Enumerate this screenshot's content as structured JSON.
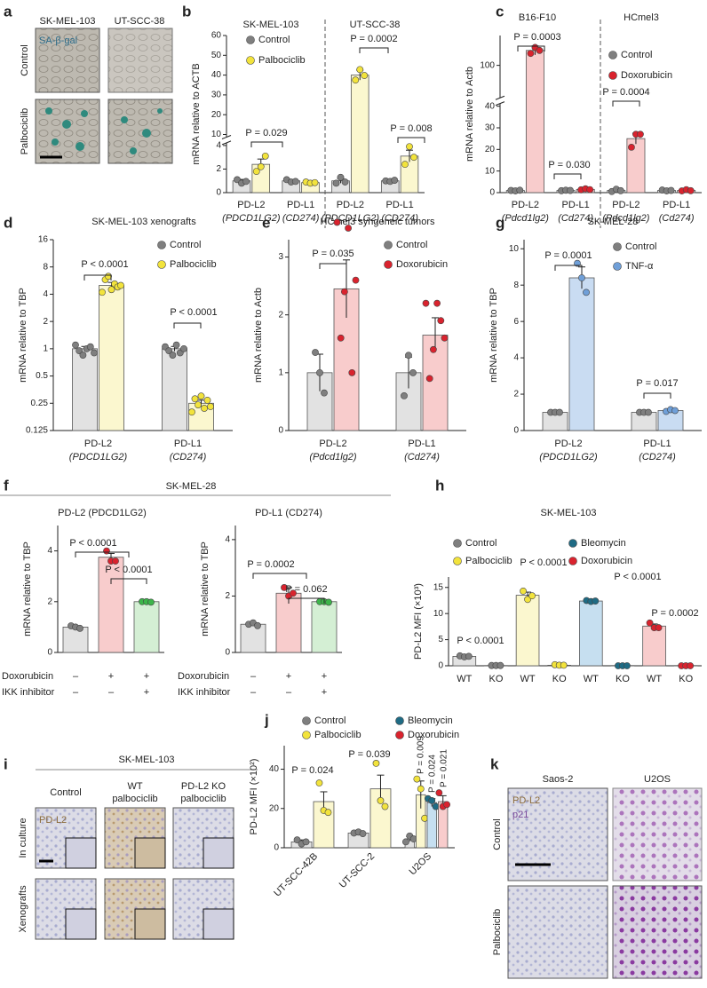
{
  "chart_data": [
    {
      "type": "bar",
      "panel": "b",
      "ylabel": "mRNA relative to ACTB",
      "group_titles": [
        "SK-MEL-103",
        "UT-SCC-38"
      ],
      "categories": [
        "PD-L2",
        "PD-L1",
        "PD-L2",
        "PD-L1"
      ],
      "sublabels": [
        "(PDCD1LG2)",
        "(CD274)",
        "(PDCD1LG2)",
        "(CD274)"
      ],
      "series": [
        {
          "name": "Control",
          "color": "#7f7f7f",
          "bar_color": "#e2e2e2",
          "values": [
            1,
            1,
            1,
            1
          ],
          "errors": [
            0.12,
            0.08,
            0.2,
            0.07
          ],
          "points": [
            [
              1.1,
              0.8,
              0.95
            ],
            [
              1.1,
              0.9,
              0.95
            ],
            [
              0.8,
              1.3,
              0.9
            ],
            [
              1.0,
              0.95,
              1.05
            ]
          ]
        },
        {
          "name": "Palbociclib",
          "color": "#f2e33c",
          "bar_color": "#fbf7cf",
          "values": [
            2.4,
            0.85,
            40,
            3.1
          ],
          "errors": [
            0.45,
            0.08,
            2.5,
            0.5
          ],
          "points": [
            [
              1.8,
              2.2,
              3.1
            ],
            [
              0.9,
              0.8,
              0.85
            ],
            [
              37.5,
              42.8,
              39.8
            ],
            [
              2.4,
              3.9,
              3.0
            ]
          ]
        }
      ],
      "ylim": [
        0,
        60
      ],
      "ybreak": [
        4,
        10
      ],
      "yticks": [
        0,
        2,
        4,
        10,
        20,
        30,
        40,
        50,
        60
      ],
      "legend": "top-left",
      "annotations": [
        "P = 0.029",
        "P = 0.0002",
        "P = 0.008"
      ]
    },
    {
      "type": "bar",
      "panel": "c",
      "ylabel": "mRNA relative to Actb",
      "group_titles": [
        "B16-F10",
        "HCmel3"
      ],
      "categories": [
        "PD-L2",
        "PD-L1",
        "PD-L2",
        "PD-L1"
      ],
      "sublabels": [
        "(Pdcd1lg2)",
        "(Cd274)",
        "(Pdcd1lg2)",
        "(Cd274)"
      ],
      "series": [
        {
          "name": "Control",
          "color": "#7f7f7f",
          "bar_color": "#e2e2e2",
          "values": [
            1,
            1,
            1,
            1
          ],
          "errors": [
            0.1,
            0.1,
            0.3,
            0.1
          ],
          "points": [
            [
              1.0,
              0.8,
              1.1
            ],
            [
              0.9,
              1.1,
              1.0
            ],
            [
              0.5,
              1.6,
              0.9
            ],
            [
              1.2,
              0.8,
              1.0
            ]
          ]
        },
        {
          "name": "Doxorubicin",
          "color": "#d9232e",
          "bar_color": "#f8cccc",
          "values": [
            110,
            1.5,
            25,
            1.0
          ],
          "errors": [
            3,
            0.2,
            2.5,
            0.3
          ],
          "points": [
            [
              108,
              112,
              110
            ],
            [
              1.3,
              1.8,
              1.4
            ],
            [
              21,
              27,
              27
            ],
            [
              0.8,
              1.4,
              0.9
            ]
          ]
        }
      ],
      "ylim": [
        0,
        120
      ],
      "ybreak": [
        40,
        80
      ],
      "yticks": [
        0,
        10,
        20,
        30,
        40,
        100
      ],
      "legend": "top-right",
      "annotations": [
        "P = 0.0003",
        "P = 0.030",
        "P = 0.0004"
      ]
    },
    {
      "type": "bar",
      "panel": "d",
      "title": "SK-MEL-103 xenografts",
      "ylabel": "mRNA relative to TBP",
      "categories": [
        "PD-L2",
        "PD-L1"
      ],
      "sublabels": [
        "(PDCD1LG2)",
        "(CD274)"
      ],
      "series": [
        {
          "name": "Control",
          "color": "#7f7f7f",
          "bar_color": "#e2e2e2",
          "values": [
            1,
            1
          ],
          "errors": [
            0.06,
            0.06
          ],
          "points": [
            [
              1.1,
              0.95,
              0.85,
              1.0,
              1.05,
              0.9
            ],
            [
              1.05,
              0.95,
              0.85,
              1.1,
              0.9,
              1.0
            ]
          ]
        },
        {
          "name": "Palbociclib",
          "color": "#f2e33c",
          "bar_color": "#fbf7cf",
          "values": [
            5,
            0.25
          ],
          "errors": [
            0.4,
            0.02
          ],
          "points": [
            [
              4.2,
              5.8,
              6.3,
              4.5,
              5.2,
              4.8,
              5.0
            ],
            [
              0.2,
              0.28,
              0.24,
              0.3,
              0.22,
              0.27,
              0.23
            ]
          ]
        }
      ],
      "log_scale": true,
      "ylim": [
        0.125,
        16
      ],
      "yticks": [
        0.125,
        0.25,
        0.5,
        1,
        2,
        4,
        8,
        16
      ],
      "legend": "top-right",
      "annotations": [
        "P < 0.0001",
        "P < 0.0001"
      ]
    },
    {
      "type": "bar",
      "panel": "e",
      "title": "HCmel3 syngeneic tumors",
      "ylabel": "mRNA relative to Actb",
      "categories": [
        "PD-L2",
        "PD-L1"
      ],
      "sublabels": [
        "(Pdcd1lg2)",
        "(Cd274)"
      ],
      "series": [
        {
          "name": "Control",
          "color": "#7f7f7f",
          "bar_color": "#e2e2e2",
          "values": [
            1,
            1
          ],
          "errors": [
            0.32,
            0.27
          ],
          "points": [
            [
              1.35,
              1.0,
              0.65
            ],
            [
              0.6,
              1.3,
              1.0
            ]
          ]
        },
        {
          "name": "Doxorubicin",
          "color": "#d9232e",
          "bar_color": "#f8cccc",
          "values": [
            2.45,
            1.65
          ],
          "errors": [
            0.5,
            0.3
          ],
          "points": [
            [
              3.6,
              1.6,
              2.4,
              3.5,
              1.0,
              2.6
            ],
            [
              2.2,
              0.9,
              1.4,
              2.2,
              1.9,
              1.6
            ]
          ]
        }
      ],
      "ylim": [
        0,
        3.3
      ],
      "yticks": [
        0,
        1,
        2,
        3
      ],
      "legend": "top-right",
      "annotations": [
        "P = 0.035"
      ]
    },
    {
      "type": "bar",
      "panel": "g",
      "title": "SK-MEL-28",
      "ylabel": "mRNA relative to TBP",
      "categories": [
        "PD-L2",
        "PD-L1"
      ],
      "sublabels": [
        "(PDCD1LG2)",
        "(CD274)"
      ],
      "series": [
        {
          "name": "Control",
          "color": "#7f7f7f",
          "bar_color": "#e2e2e2",
          "values": [
            1,
            1
          ],
          "errors": [
            0.03,
            0.05
          ],
          "points": [
            [
              1.0,
              1.0,
              1.0
            ],
            [
              1.0,
              1.0,
              1.0
            ]
          ]
        },
        {
          "name": "TNF-α",
          "color": "#6f9fd8",
          "bar_color": "#c9dcf2",
          "values": [
            8.4,
            1.1
          ],
          "errors": [
            0.6,
            0.05
          ],
          "points": [
            [
              9.2,
              8.4,
              7.6
            ],
            [
              1.05,
              1.15,
              1.1
            ]
          ]
        }
      ],
      "ylim": [
        0,
        10.5
      ],
      "yticks": [
        0,
        2,
        4,
        6,
        8,
        10
      ],
      "legend": "top-right",
      "annotations": [
        "P = 0.0001",
        "P = 0.017"
      ]
    },
    {
      "type": "bar",
      "panel": "f",
      "header": "SK-MEL-28",
      "title": "PD-L2 (PDCD1LG2)",
      "ylabel": "mRNA relative to TBP",
      "conditions": [
        {
          "label": "Doxorubicin",
          "values": [
            "–",
            "+",
            "+"
          ]
        },
        {
          "label": "IKK inhibitor",
          "values": [
            "–",
            "–",
            "+"
          ]
        }
      ],
      "series": [
        {
          "colors": [
            "#7f7f7f",
            "#d9232e",
            "#3cb54a"
          ],
          "bar_colors": [
            "#e2e2e2",
            "#f8cccc",
            "#d4efd4"
          ],
          "values": [
            1,
            3.75,
            2.0
          ],
          "errors": [
            0.05,
            0.15,
            0.03
          ],
          "points": [
            [
              1.05,
              1.0,
              0.95
            ],
            [
              4.0,
              3.6,
              3.6
            ],
            [
              2.0,
              2.0,
              1.98
            ]
          ]
        }
      ],
      "ylim": [
        0,
        5
      ],
      "yticks": [
        0,
        2,
        4
      ],
      "annotations": [
        "P < 0.0001",
        "P < 0.0001"
      ]
    },
    {
      "type": "bar",
      "panel": "",
      "title": "PD-L1 (CD274)",
      "ylabel": "mRNA relative to TBP",
      "conditions": [
        {
          "label": "Doxorubicin",
          "values": [
            "–",
            "+",
            "+"
          ]
        },
        {
          "label": "IKK inhibitor",
          "values": [
            "–",
            "–",
            "+"
          ]
        }
      ],
      "series": [
        {
          "colors": [
            "#7f7f7f",
            "#d9232e",
            "#3cb54a"
          ],
          "bar_colors": [
            "#e2e2e2",
            "#f8cccc",
            "#d4efd4"
          ],
          "values": [
            1,
            2.1,
            1.8
          ],
          "errors": [
            0.05,
            0.2,
            0.03
          ],
          "points": [
            [
              1.0,
              1.05,
              0.95
            ],
            [
              2.3,
              2.0,
              2.1
            ],
            [
              1.8,
              1.8,
              1.78
            ]
          ]
        }
      ],
      "ylim": [
        0,
        4.5
      ],
      "yticks": [
        0,
        2,
        4
      ],
      "annotations": [
        "P = 0.0002",
        "P = 0.062"
      ]
    },
    {
      "type": "bar",
      "panel": "h",
      "title": "SK-MEL-103",
      "ylabel": "PD-L2 MFI (×10³)",
      "categories": [
        "WT",
        "KO",
        "WT",
        "KO",
        "WT",
        "KO",
        "WT",
        "KO"
      ],
      "series": [
        {
          "name": "Control",
          "color": "#7f7f7f",
          "bar_color": "#e2e2e2",
          "values": [
            1.8,
            0.05,
            null,
            null,
            null,
            null,
            null,
            null
          ],
          "errors": [
            0.1,
            0.02,
            null,
            null,
            null,
            null,
            null,
            null
          ],
          "points": [
            [
              1.9,
              1.7,
              1.8
            ],
            [
              0.05,
              0.05,
              0.05
            ],
            null,
            null,
            null,
            null,
            null,
            null
          ]
        },
        {
          "name": "Palbociclib",
          "color": "#f2e33c",
          "bar_color": "#fbf7cf",
          "values": [
            null,
            null,
            13.5,
            0.1,
            null,
            null,
            null,
            null
          ],
          "errors": [
            null,
            null,
            0.6,
            0.05,
            null,
            null,
            null,
            null
          ],
          "points": [
            null,
            null,
            [
              14.3,
              12.7,
              13.4
            ],
            [
              0.2,
              0.1,
              0.1
            ],
            null,
            null,
            null,
            null
          ]
        },
        {
          "name": "Bleomycin",
          "color": "#1f6b84",
          "bar_color": "#c6dff0",
          "values": [
            null,
            null,
            null,
            null,
            12.4,
            0.05,
            null,
            null
          ],
          "errors": [
            null,
            null,
            null,
            null,
            0.1,
            0.02,
            null,
            null
          ],
          "points": [
            null,
            null,
            null,
            null,
            [
              12.5,
              12.3,
              12.4
            ],
            [
              0,
              0,
              0
            ],
            null,
            null
          ]
        },
        {
          "name": "Doxorubicin",
          "color": "#d9232e",
          "bar_color": "#f8cccc",
          "values": [
            null,
            null,
            null,
            null,
            null,
            null,
            7.6,
            0.05
          ],
          "errors": [
            null,
            null,
            null,
            null,
            null,
            null,
            0.4,
            0.02
          ],
          "points": [
            null,
            null,
            null,
            null,
            null,
            null,
            [
              8.2,
              7.3,
              7.3
            ],
            [
              0,
              0,
              0
            ]
          ]
        }
      ],
      "ylim": [
        0,
        17
      ],
      "yticks": [
        0,
        5,
        10,
        15
      ],
      "legend": "top-left",
      "annotations": [
        "P < 0.0001",
        "P < 0.0001",
        "P < 0.0001",
        "P = 0.0002"
      ]
    },
    {
      "type": "bar",
      "panel": "j",
      "ylabel": "PD-L2 MFI (×10²)",
      "categories": [
        "UT-SCC-42B",
        "UT-SCC-2",
        "U2OS"
      ],
      "series": [
        {
          "name": "Control",
          "color": "#7f7f7f",
          "bar_color": "#e2e2e2",
          "values": [
            3,
            7.5,
            4.5
          ],
          "errors": [
            1,
            0.5,
            1.2
          ],
          "points": [
            [
              4,
              2,
              3
            ],
            [
              7.5,
              8,
              7.2
            ],
            [
              3,
              6,
              4.5
            ]
          ]
        },
        {
          "name": "Palbociclib",
          "color": "#f2e33c",
          "bar_color": "#fbf7cf",
          "values": [
            23.5,
            30,
            27
          ],
          "errors": [
            5,
            7,
            7
          ],
          "points": [
            [
              33,
              19,
              18
            ],
            [
              43,
              24,
              21
            ],
            [
              35,
              30,
              15
            ]
          ]
        },
        {
          "name": "Bleomycin",
          "color": "#1f6b84",
          "bar_color": "#c6dff0",
          "values": [
            null,
            null,
            23
          ],
          "errors": [
            null,
            null,
            2
          ],
          "points": [
            null,
            null,
            [
              25,
              24,
              21
            ]
          ]
        },
        {
          "name": "Doxorubicin",
          "color": "#d9232e",
          "bar_color": "#f8cccc",
          "values": [
            null,
            null,
            23.5
          ],
          "errors": [
            null,
            null,
            3
          ],
          "points": [
            null,
            null,
            [
              28,
              21,
              22
            ]
          ]
        }
      ],
      "ylim": [
        0,
        52
      ],
      "yticks": [
        0,
        20,
        40
      ],
      "legend": "top-left",
      "annotations": [
        "P = 0.024",
        "P = 0.039",
        "P = 0.009",
        "P = 0.024",
        "P = 0.021"
      ]
    }
  ],
  "image_panels": [
    {
      "panel": "a",
      "columns": [
        "SK-MEL-103",
        "UT-SCC-38"
      ],
      "rows": [
        "Control",
        "Palbociclib"
      ],
      "stain_labels": [
        "SA-β-gal"
      ]
    },
    {
      "panel": "i",
      "title": "SK-MEL-103",
      "columns": [
        [
          "Control"
        ],
        [
          "WT",
          "palbociclib"
        ],
        [
          "PD-L2 KO",
          "palbociclib"
        ]
      ],
      "rows": [
        "In culture",
        "Xenografts"
      ],
      "stain_labels": [
        "PD-L2"
      ]
    },
    {
      "panel": "k",
      "columns": [
        "Saos-2",
        "U2OS"
      ],
      "rows": [
        "Control",
        "Palbociclib"
      ],
      "stain_labels": [
        "PD-L2",
        "p21"
      ]
    }
  ]
}
